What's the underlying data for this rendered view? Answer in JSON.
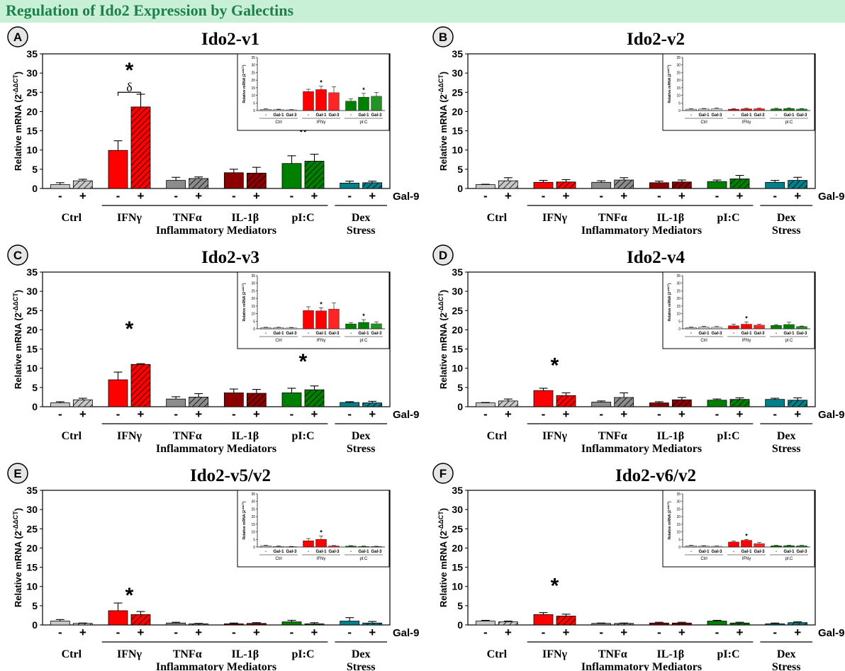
{
  "banner": {
    "title": "Regulation of Ido2 Expression by Galectins"
  },
  "colors": {
    "ctrl": "#c8c8c8",
    "ifng": "#ff0000",
    "tnfa": "#8c8c8c",
    "il1b": "#8b0000",
    "pic": "#008000",
    "dex": "#00808a",
    "banner_bg": "#c8f0d6",
    "banner_text": "#1f7f4b"
  },
  "shared": {
    "ylabel": "Relative mRNA (2",
    "ylabel_sup": "-ΔΔCT",
    "gal_label": "Gal-9",
    "minus": "-",
    "plus": "+",
    "group_labels": [
      "Ctrl",
      "IFNγ",
      "TNFα",
      "IL-1β",
      "pI:C",
      "Dex"
    ],
    "category_mediators": "Inflammatory Mediators",
    "category_stress": "Stress",
    "inset_ylabel": "Relative mRNA (2",
    "inset_ylabel_sup": "-ΔΔCT",
    "inset_xlabels": [
      "-",
      "Gal-1",
      "Gal-3"
    ],
    "inset_groups": [
      "Ctrl",
      "IFNγ",
      "pI:C"
    ]
  },
  "chart_data": [
    {
      "type": "bar",
      "letter": "A",
      "title": "Ido2-v1",
      "ylim": [
        0,
        35
      ],
      "yticks": [
        0,
        5,
        10,
        15,
        20,
        25,
        30,
        35
      ],
      "values": [
        1.0,
        2.0,
        9.9,
        21.2,
        2.1,
        2.6,
        4.1,
        4.0,
        6.5,
        7.1,
        1.4,
        1.5
      ],
      "errors": [
        0.5,
        0.4,
        2.5,
        3.3,
        0.8,
        0.4,
        0.9,
        1.5,
        2.0,
        1.8,
        0.5,
        0.4
      ],
      "annotations": [
        {
          "text": "*",
          "group": 1,
          "y": 31.5,
          "large": true
        },
        {
          "text": "δ",
          "group": 1,
          "y": 26.3,
          "large": false,
          "bracket": 25.0
        },
        {
          "text": "*",
          "group": 4,
          "y": 15.5,
          "large": true
        }
      ],
      "inset": {
        "ylim": [
          0,
          35
        ],
        "yticks": [
          0,
          5,
          10,
          15,
          20,
          25,
          30,
          35
        ],
        "values": [
          0.8,
          0.6,
          0.5,
          12.5,
          13.8,
          11.8,
          6.2,
          8.8,
          9.4
        ],
        "errors": [
          0.3,
          0.3,
          0.2,
          1.5,
          2.2,
          3.8,
          1.5,
          2.5,
          2.5
        ],
        "stars": [
          4,
          7
        ]
      }
    },
    {
      "type": "bar",
      "letter": "B",
      "title": "Ido2-v2",
      "ylim": [
        0,
        35
      ],
      "yticks": [
        0,
        5,
        10,
        15,
        20,
        25,
        30,
        35
      ],
      "values": [
        1.0,
        2.0,
        1.6,
        1.7,
        1.6,
        2.2,
        1.5,
        1.7,
        1.8,
        2.5,
        1.6,
        2.1
      ],
      "errors": [
        0.1,
        0.8,
        0.5,
        0.6,
        0.4,
        0.6,
        0.4,
        0.5,
        0.4,
        0.9,
        0.5,
        0.8
      ],
      "annotations": [],
      "inset": {
        "ylim": [
          0,
          35
        ],
        "yticks": [
          0,
          5,
          10,
          15,
          20,
          25,
          30,
          35
        ],
        "values": [
          0.9,
          1.0,
          1.3,
          0.9,
          1.1,
          1.2,
          1.1,
          1.3,
          1.0
        ],
        "errors": [
          0.3,
          0.4,
          0.4,
          0.3,
          0.4,
          0.4,
          0.4,
          0.5,
          0.3
        ],
        "stars": []
      }
    },
    {
      "type": "bar",
      "letter": "C",
      "title": "Ido2-v3",
      "ylim": [
        0,
        35
      ],
      "yticks": [
        0,
        5,
        10,
        15,
        20,
        25,
        30,
        35
      ],
      "values": [
        1.0,
        1.8,
        7.0,
        11.0,
        2.0,
        2.5,
        3.6,
        3.5,
        3.6,
        4.4,
        1.1,
        1.0
      ],
      "errors": [
        0.3,
        0.4,
        2.0,
        0.2,
        0.6,
        0.9,
        1.0,
        1.0,
        1.2,
        1.0,
        0.2,
        0.4
      ],
      "annotations": [
        {
          "text": "*",
          "group": 1,
          "y": 21.0,
          "large": true
        },
        {
          "text": "*",
          "group": 4,
          "y": 12.5,
          "large": true
        }
      ],
      "inset": {
        "ylim": [
          0,
          35
        ],
        "yticks": [
          0,
          5,
          10,
          15,
          20,
          25,
          30,
          35
        ],
        "values": [
          0.7,
          0.7,
          0.6,
          12.0,
          11.8,
          13.0,
          3.2,
          4.2,
          3.3
        ],
        "errors": [
          0.3,
          0.3,
          0.3,
          2.5,
          2.0,
          4.0,
          0.8,
          1.8,
          1.3
        ],
        "stars": [
          4,
          7
        ]
      }
    },
    {
      "type": "bar",
      "letter": "D",
      "title": "Ido2-v4",
      "ylim": [
        0,
        35
      ],
      "yticks": [
        0,
        5,
        10,
        15,
        20,
        25,
        30,
        35
      ],
      "values": [
        1.0,
        1.5,
        4.2,
        2.9,
        1.2,
        2.4,
        1.0,
        1.8,
        1.7,
        1.9,
        1.9,
        1.7
      ],
      "errors": [
        0.1,
        0.5,
        0.6,
        0.7,
        0.3,
        1.2,
        0.3,
        0.6,
        0.3,
        0.4,
        0.3,
        0.6
      ],
      "annotations": [
        {
          "text": "*",
          "group": 1,
          "y": 11.5,
          "large": true
        }
      ],
      "inset": {
        "ylim": [
          0,
          35
        ],
        "yticks": [
          0,
          5,
          10,
          15,
          20,
          25,
          30,
          35
        ],
        "values": [
          0.8,
          1.1,
          1.0,
          2.0,
          3.0,
          2.4,
          2.2,
          2.8,
          1.5
        ],
        "errors": [
          0.3,
          0.5,
          0.5,
          1.0,
          1.5,
          0.6,
          0.6,
          1.5,
          0.3
        ],
        "stars": [
          4
        ]
      }
    },
    {
      "type": "bar",
      "letter": "E",
      "title": "Ido2-v5/v2",
      "ylim": [
        0,
        35
      ],
      "yticks": [
        0,
        5,
        10,
        15,
        20,
        25,
        30,
        35
      ],
      "values": [
        1.0,
        0.4,
        3.7,
        2.7,
        0.5,
        0.3,
        0.3,
        0.4,
        0.8,
        0.3,
        1.0,
        0.5
      ],
      "errors": [
        0.4,
        0.1,
        2.0,
        0.8,
        0.2,
        0.1,
        0.2,
        0.2,
        0.4,
        0.3,
        0.9,
        0.4
      ],
      "annotations": [
        {
          "text": "*",
          "group": 1,
          "y": 8.5,
          "large": true
        }
      ],
      "inset": {
        "ylim": [
          0,
          35
        ],
        "yticks": [
          0,
          5,
          10,
          15,
          20,
          25,
          30,
          35
        ],
        "values": [
          0.8,
          0.4,
          0.2,
          4.1,
          5.0,
          0.7,
          0.6,
          0.3,
          0.3
        ],
        "errors": [
          0.4,
          0.3,
          0.2,
          1.5,
          2.2,
          0.3,
          0.3,
          0.3,
          0.2
        ],
        "stars": [
          4
        ]
      }
    },
    {
      "type": "bar",
      "letter": "F",
      "title": "Ido2-v6/v2",
      "ylim": [
        0,
        35
      ],
      "yticks": [
        0,
        5,
        10,
        15,
        20,
        25,
        30,
        35
      ],
      "values": [
        1.0,
        0.8,
        2.7,
        2.3,
        0.4,
        0.4,
        0.5,
        0.5,
        1.0,
        0.5,
        0.3,
        0.6
      ],
      "errors": [
        0.2,
        0.2,
        0.5,
        0.5,
        0.1,
        0.1,
        0.2,
        0.2,
        0.2,
        0.2,
        0.2,
        0.2
      ],
      "annotations": [
        {
          "text": "*",
          "group": 1,
          "y": 11.0,
          "large": true
        }
      ],
      "inset": {
        "ylim": [
          0,
          35
        ],
        "yticks": [
          0,
          5,
          10,
          15,
          20,
          25,
          30,
          35
        ],
        "values": [
          0.8,
          0.6,
          0.5,
          3.3,
          4.4,
          2.2,
          0.8,
          0.9,
          0.8
        ],
        "errors": [
          0.3,
          0.3,
          0.2,
          0.6,
          0.6,
          0.8,
          0.3,
          0.3,
          0.3
        ],
        "stars": [
          4
        ]
      }
    }
  ]
}
